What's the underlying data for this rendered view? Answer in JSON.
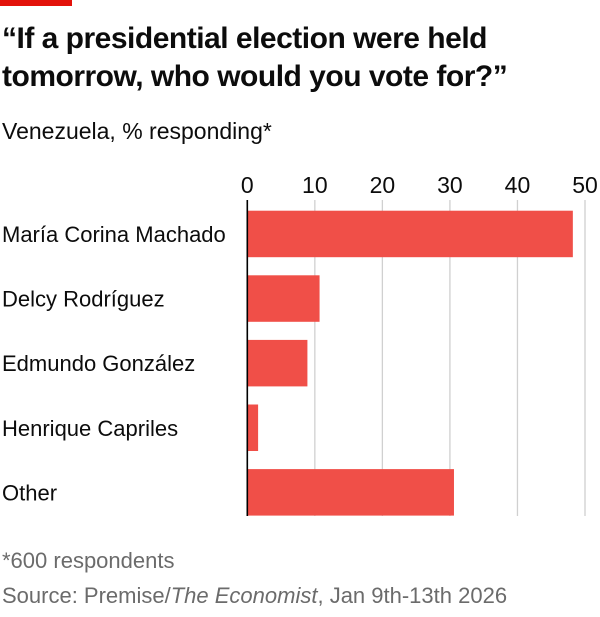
{
  "title": "“If a presidential election were held tomorrow, who would you vote for?”",
  "subtitle": "Venezuela, % responding*",
  "footnote": "*600 respondents",
  "source_prefix": "Source: Premise/",
  "source_italic": "The Economist",
  "source_suffix": ", Jan 9th-13th 2026",
  "colors": {
    "bar": "#f04f48",
    "accent": "#e3120b",
    "grid": "#d0d0d0",
    "axis": "#000000"
  },
  "chart_data": {
    "type": "bar",
    "orientation": "horizontal",
    "categories": [
      "María Corina Machado",
      "Delcy Rodríguez",
      "Edmundo González",
      "Henrique Capriles",
      "Other"
    ],
    "values": [
      48.2,
      10.7,
      8.9,
      1.6,
      30.6
    ],
    "xlim": [
      0,
      50
    ],
    "ticks": [
      "0",
      "10",
      "20",
      "30",
      "40",
      "50"
    ],
    "tick_values": [
      0,
      10,
      20,
      30,
      40,
      50
    ],
    "grid": true
  }
}
